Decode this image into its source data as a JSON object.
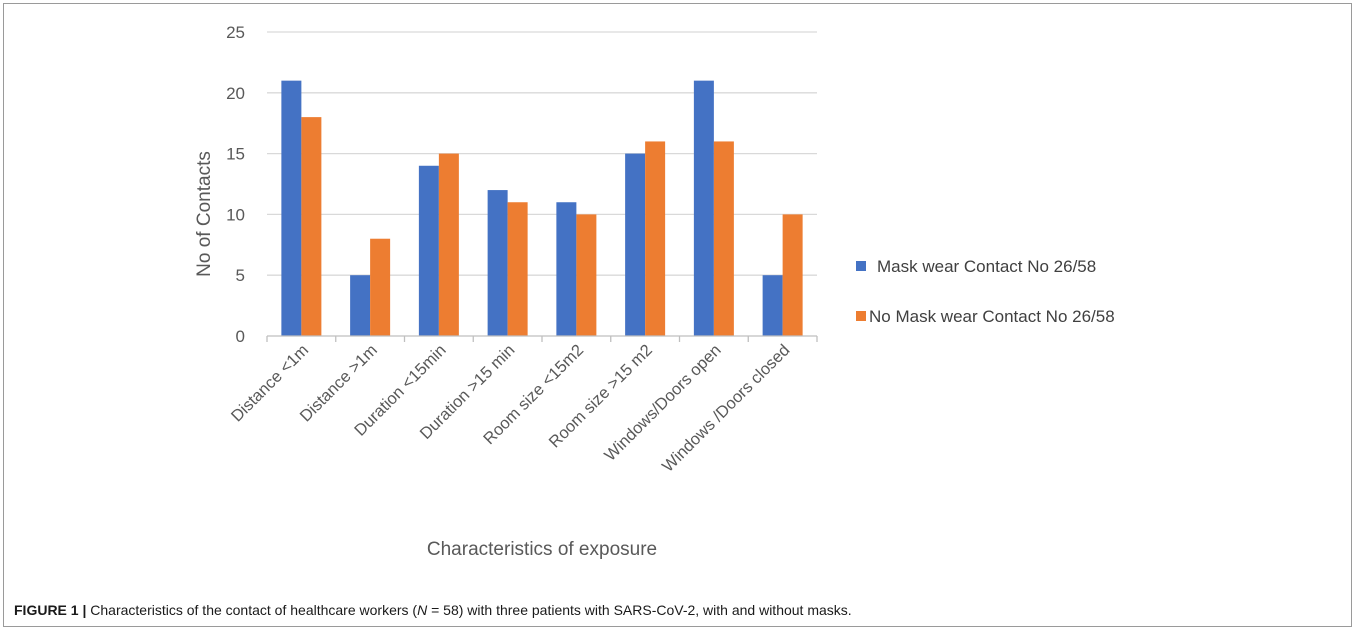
{
  "chart_data": {
    "type": "bar",
    "categories": [
      "Distance <1m",
      "Distance >1m",
      "Duration <15min",
      "Duration >15 min",
      "Room size <15m2",
      "Room size >15 m2",
      "Windows/Doors open",
      "Windows /Doors closed"
    ],
    "series": [
      {
        "name": "Mask wear Contact No 26/58",
        "color": "#4472c4",
        "values": [
          21,
          5,
          14,
          12,
          11,
          15,
          21,
          5
        ]
      },
      {
        "name": "No Mask wear Contact No 26/58",
        "color": "#ed7d31",
        "values": [
          18,
          8,
          15,
          11,
          10,
          16,
          16,
          10
        ]
      }
    ],
    "title": "",
    "xlabel": "Characteristics of exposure",
    "ylabel": "No of Contacts",
    "ylim": [
      0,
      25
    ],
    "yticks": [
      0,
      5,
      10,
      15,
      20,
      25
    ],
    "grid": true,
    "legend_position": "right"
  },
  "caption": {
    "label": "FIGURE 1 |",
    "text_before": " Characteristics of the contact of healthcare workers (",
    "italic": "N",
    "text_after": " = 58) with three patients with SARS-CoV-2, with and without masks."
  }
}
